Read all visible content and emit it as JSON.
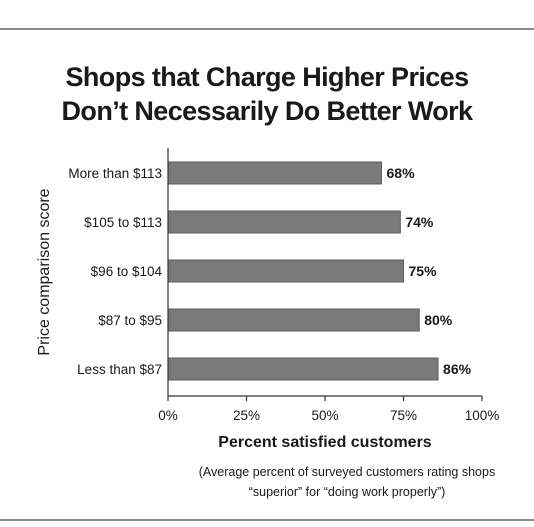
{
  "chart_data": {
    "type": "bar",
    "orientation": "horizontal",
    "title": "Shops that Charge Higher Prices Don’t Necessarily Do Better Work",
    "ylabel": "Price comparison score",
    "xlabel": "Percent satisfied customers",
    "note": "(Average percent of surveyed customers rating shops “superior” for “doing work properly”)",
    "categories": [
      "More than $113",
      "$105 to $113",
      "$96 to $104",
      "$87 to $95",
      "Less than $87"
    ],
    "values": [
      68,
      74,
      75,
      80,
      86
    ],
    "value_labels": [
      "68%",
      "74%",
      "75%",
      "80%",
      "86%"
    ],
    "xlim": [
      0,
      100
    ],
    "xticks": [
      0,
      25,
      50,
      75,
      100
    ],
    "xtick_labels": [
      "0%",
      "25%",
      "50%",
      "75%",
      "100%"
    ],
    "grid": false,
    "bar_color": "#7a7a7a",
    "bar_edge_color": "#5e5e5e"
  }
}
